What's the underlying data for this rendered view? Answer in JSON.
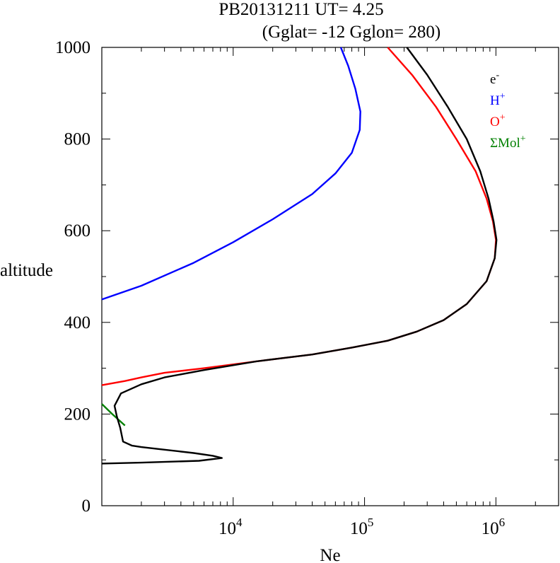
{
  "chart_data": {
    "type": "line",
    "title": "PB20131211   UT=  4.25",
    "subtitle": "(Gglat= -12   Gglon=  280)",
    "xlabel": "Ne",
    "ylabel": "altitude",
    "xscale": "log",
    "xlim": [
      1000,
      3000000
    ],
    "ylim": [
      0,
      1000
    ],
    "x_ticks": [
      {
        "value": 10000,
        "base": "10",
        "exp": "4"
      },
      {
        "value": 100000,
        "base": "10",
        "exp": "5"
      },
      {
        "value": 1000000,
        "base": "10",
        "exp": "6"
      }
    ],
    "y_ticks": [
      {
        "value": 0,
        "label": "0"
      },
      {
        "value": 200,
        "label": "200"
      },
      {
        "value": 400,
        "label": "400"
      },
      {
        "value": 600,
        "label": "600"
      },
      {
        "value": 800,
        "label": "800"
      },
      {
        "value": 1000,
        "label": "1000"
      }
    ],
    "legend_position": "top-right",
    "series": [
      {
        "name": "H",
        "sup": "+",
        "color": "#0000ff",
        "points": [
          [
            1000,
            450
          ],
          [
            2000,
            480
          ],
          [
            5000,
            530
          ],
          [
            10000,
            575
          ],
          [
            20000,
            625
          ],
          [
            40000,
            680
          ],
          [
            60000,
            725
          ],
          [
            80000,
            770
          ],
          [
            92000,
            820
          ],
          [
            93000,
            860
          ],
          [
            85000,
            910
          ],
          [
            75000,
            960
          ],
          [
            66000,
            1000
          ]
        ]
      },
      {
        "name": "O",
        "sup": "+",
        "color": "#ff0000",
        "points": [
          [
            1000,
            263
          ],
          [
            1500,
            272
          ],
          [
            2000,
            280
          ],
          [
            3000,
            290
          ],
          [
            6000,
            300
          ],
          [
            15000,
            315
          ],
          [
            40000,
            330
          ],
          [
            80000,
            345
          ],
          [
            150000,
            360
          ],
          [
            250000,
            380
          ],
          [
            400000,
            405
          ],
          [
            600000,
            440
          ],
          [
            850000,
            490
          ],
          [
            980000,
            540
          ],
          [
            1000000,
            580
          ],
          [
            950000,
            620
          ],
          [
            850000,
            670
          ],
          [
            700000,
            730
          ],
          [
            500000,
            800
          ],
          [
            350000,
            870
          ],
          [
            230000,
            940
          ],
          [
            150000,
            1000
          ]
        ]
      },
      {
        "name": "ΣMol",
        "sup": "+",
        "color": "#008000",
        "points": [
          [
            1000,
            222
          ],
          [
            1200,
            200
          ],
          [
            1500,
            175
          ]
        ]
      },
      {
        "name": "e",
        "sup": "-",
        "color": "#000000",
        "points": [
          [
            1000,
            92
          ],
          [
            2000,
            94
          ],
          [
            5500,
            98
          ],
          [
            8200,
            104
          ],
          [
            7000,
            109
          ],
          [
            5000,
            115
          ],
          [
            2000,
            128
          ],
          [
            1700,
            131
          ],
          [
            1450,
            140
          ],
          [
            1380,
            170
          ],
          [
            1300,
            195
          ],
          [
            1250,
            218
          ],
          [
            1400,
            245
          ],
          [
            2000,
            265
          ],
          [
            3000,
            280
          ],
          [
            6000,
            296
          ],
          [
            15000,
            315
          ],
          [
            40000,
            330
          ],
          [
            80000,
            345
          ],
          [
            150000,
            360
          ],
          [
            250000,
            380
          ],
          [
            400000,
            405
          ],
          [
            600000,
            440
          ],
          [
            850000,
            490
          ],
          [
            980000,
            540
          ],
          [
            1010000,
            580
          ],
          [
            960000,
            620
          ],
          [
            880000,
            670
          ],
          [
            760000,
            730
          ],
          [
            600000,
            800
          ],
          [
            430000,
            870
          ],
          [
            300000,
            940
          ],
          [
            210000,
            1000
          ]
        ]
      }
    ]
  }
}
